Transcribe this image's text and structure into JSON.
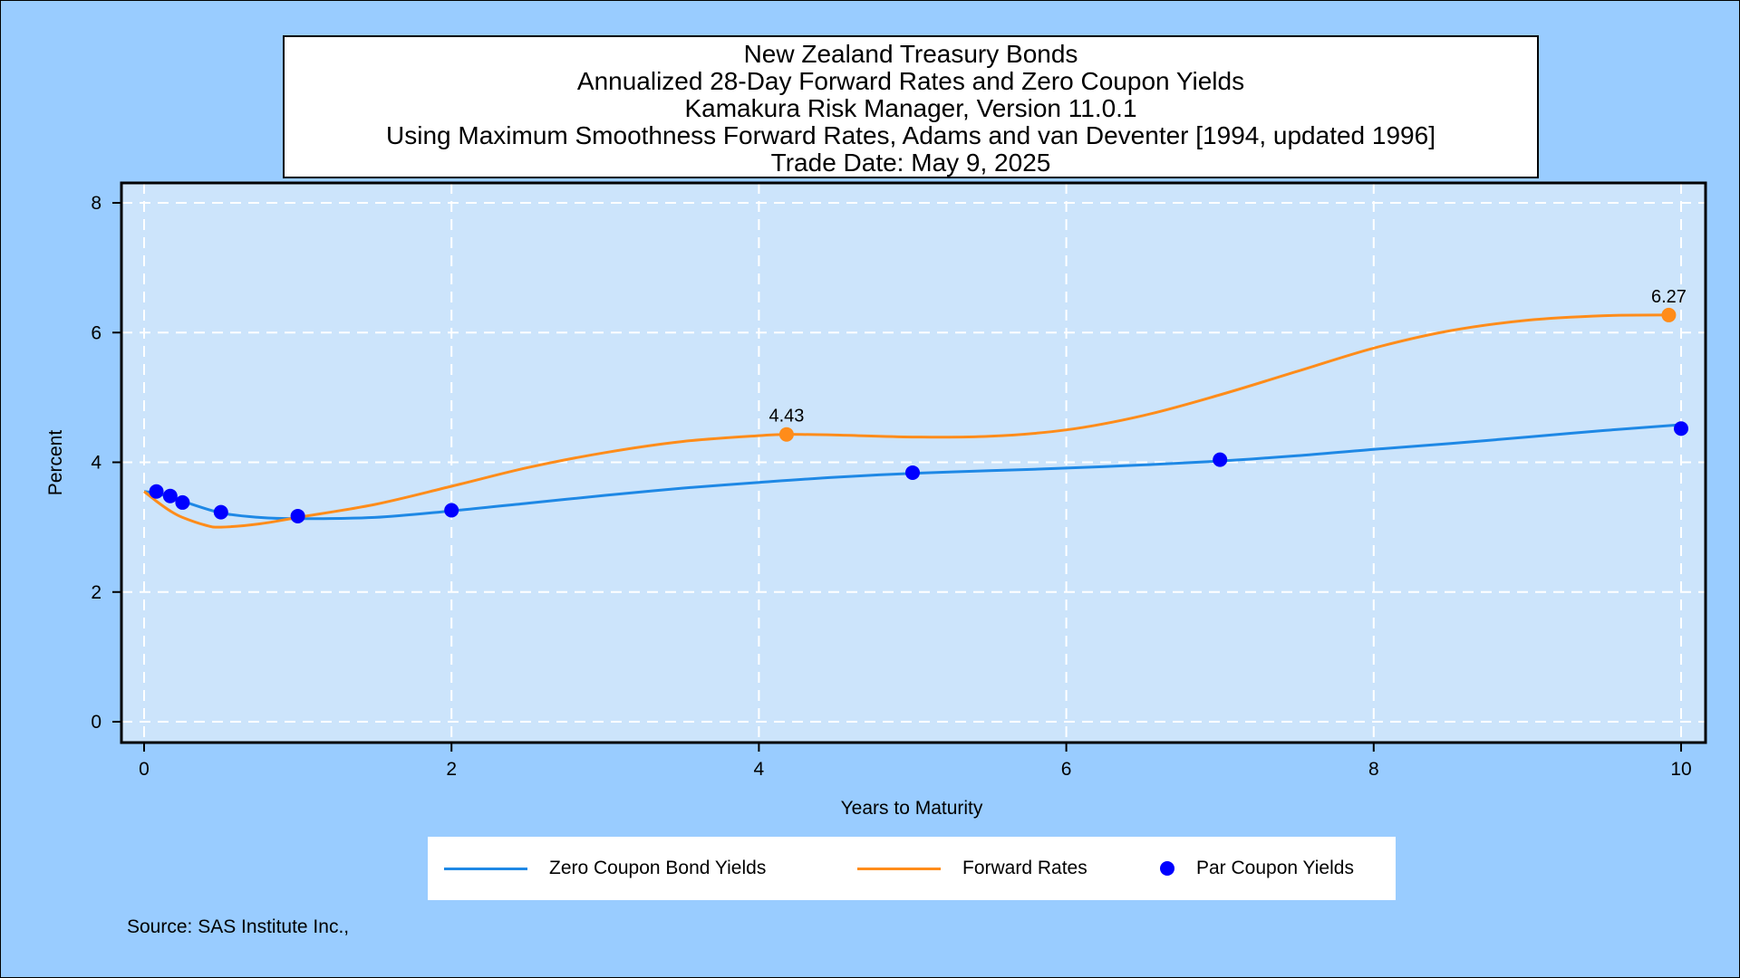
{
  "colors": {
    "background": "#99ccff",
    "plot_background": "#cce4fb",
    "zero_coupon": "#1e88e5",
    "forward": "#ff8c1a",
    "par_coupon": "#0000ff",
    "grid": "#ffffff"
  },
  "chart_data": {
    "type": "line",
    "title_lines": [
      "New Zealand Treasury Bonds",
      "Annualized 28-Day Forward Rates and Zero Coupon Yields",
      "Kamakura Risk Manager, Version 11.0.1",
      "Using Maximum Smoothness Forward Rates, Adams and van Deventer [1994, updated 1996]",
      "Trade Date: May 9, 2025"
    ],
    "xlabel": "Years to Maturity",
    "ylabel": "Percent",
    "xlim": [
      0,
      10
    ],
    "ylim": [
      0,
      8
    ],
    "x_ticks": [
      0,
      2,
      4,
      6,
      8,
      10
    ],
    "y_ticks": [
      0,
      2,
      4,
      6,
      8
    ],
    "grid": true,
    "legend_position": "bottom",
    "series": [
      {
        "name": "Zero Coupon Bond Yields",
        "style": "line",
        "color_key": "zero_coupon",
        "points": [
          [
            0.0,
            3.55
          ],
          [
            0.08,
            3.52
          ],
          [
            0.17,
            3.46
          ],
          [
            0.25,
            3.4
          ],
          [
            0.5,
            3.22
          ],
          [
            0.75,
            3.15
          ],
          [
            1.0,
            3.13
          ],
          [
            1.5,
            3.15
          ],
          [
            2.0,
            3.25
          ],
          [
            2.5,
            3.37
          ],
          [
            3.0,
            3.49
          ],
          [
            3.5,
            3.6
          ],
          [
            4.0,
            3.69
          ],
          [
            4.5,
            3.77
          ],
          [
            5.0,
            3.83
          ],
          [
            5.5,
            3.87
          ],
          [
            6.0,
            3.91
          ],
          [
            6.5,
            3.96
          ],
          [
            7.0,
            4.02
          ],
          [
            7.5,
            4.1
          ],
          [
            8.0,
            4.2
          ],
          [
            8.5,
            4.29
          ],
          [
            9.0,
            4.39
          ],
          [
            9.5,
            4.49
          ],
          [
            10.0,
            4.58
          ]
        ]
      },
      {
        "name": "Forward Rates",
        "style": "line",
        "color_key": "forward",
        "points": [
          [
            0.0,
            3.55
          ],
          [
            0.08,
            3.4
          ],
          [
            0.17,
            3.25
          ],
          [
            0.25,
            3.15
          ],
          [
            0.4,
            3.03
          ],
          [
            0.5,
            3.0
          ],
          [
            0.75,
            3.05
          ],
          [
            1.0,
            3.15
          ],
          [
            1.5,
            3.35
          ],
          [
            2.0,
            3.63
          ],
          [
            2.5,
            3.92
          ],
          [
            3.0,
            4.15
          ],
          [
            3.5,
            4.32
          ],
          [
            4.0,
            4.41
          ],
          [
            4.18,
            4.43
          ],
          [
            4.5,
            4.42
          ],
          [
            5.0,
            4.39
          ],
          [
            5.5,
            4.4
          ],
          [
            6.0,
            4.5
          ],
          [
            6.5,
            4.72
          ],
          [
            7.0,
            5.04
          ],
          [
            7.5,
            5.4
          ],
          [
            8.0,
            5.76
          ],
          [
            8.5,
            6.03
          ],
          [
            9.0,
            6.19
          ],
          [
            9.5,
            6.26
          ],
          [
            9.92,
            6.27
          ]
        ]
      },
      {
        "name": "Par Coupon Yields",
        "style": "marker",
        "color_key": "par_coupon",
        "points": [
          [
            0.08,
            3.55
          ],
          [
            0.17,
            3.48
          ],
          [
            0.25,
            3.38
          ],
          [
            0.5,
            3.23
          ],
          [
            1.0,
            3.17
          ],
          [
            2.0,
            3.26
          ],
          [
            5.0,
            3.84
          ],
          [
            7.0,
            4.04
          ],
          [
            10.0,
            4.52
          ]
        ]
      }
    ],
    "annotations": [
      {
        "x": 4.18,
        "y": 4.43,
        "label": "4.43"
      },
      {
        "x": 9.92,
        "y": 6.27,
        "label": "6.27"
      }
    ]
  },
  "source": "Source: SAS Institute Inc.,"
}
